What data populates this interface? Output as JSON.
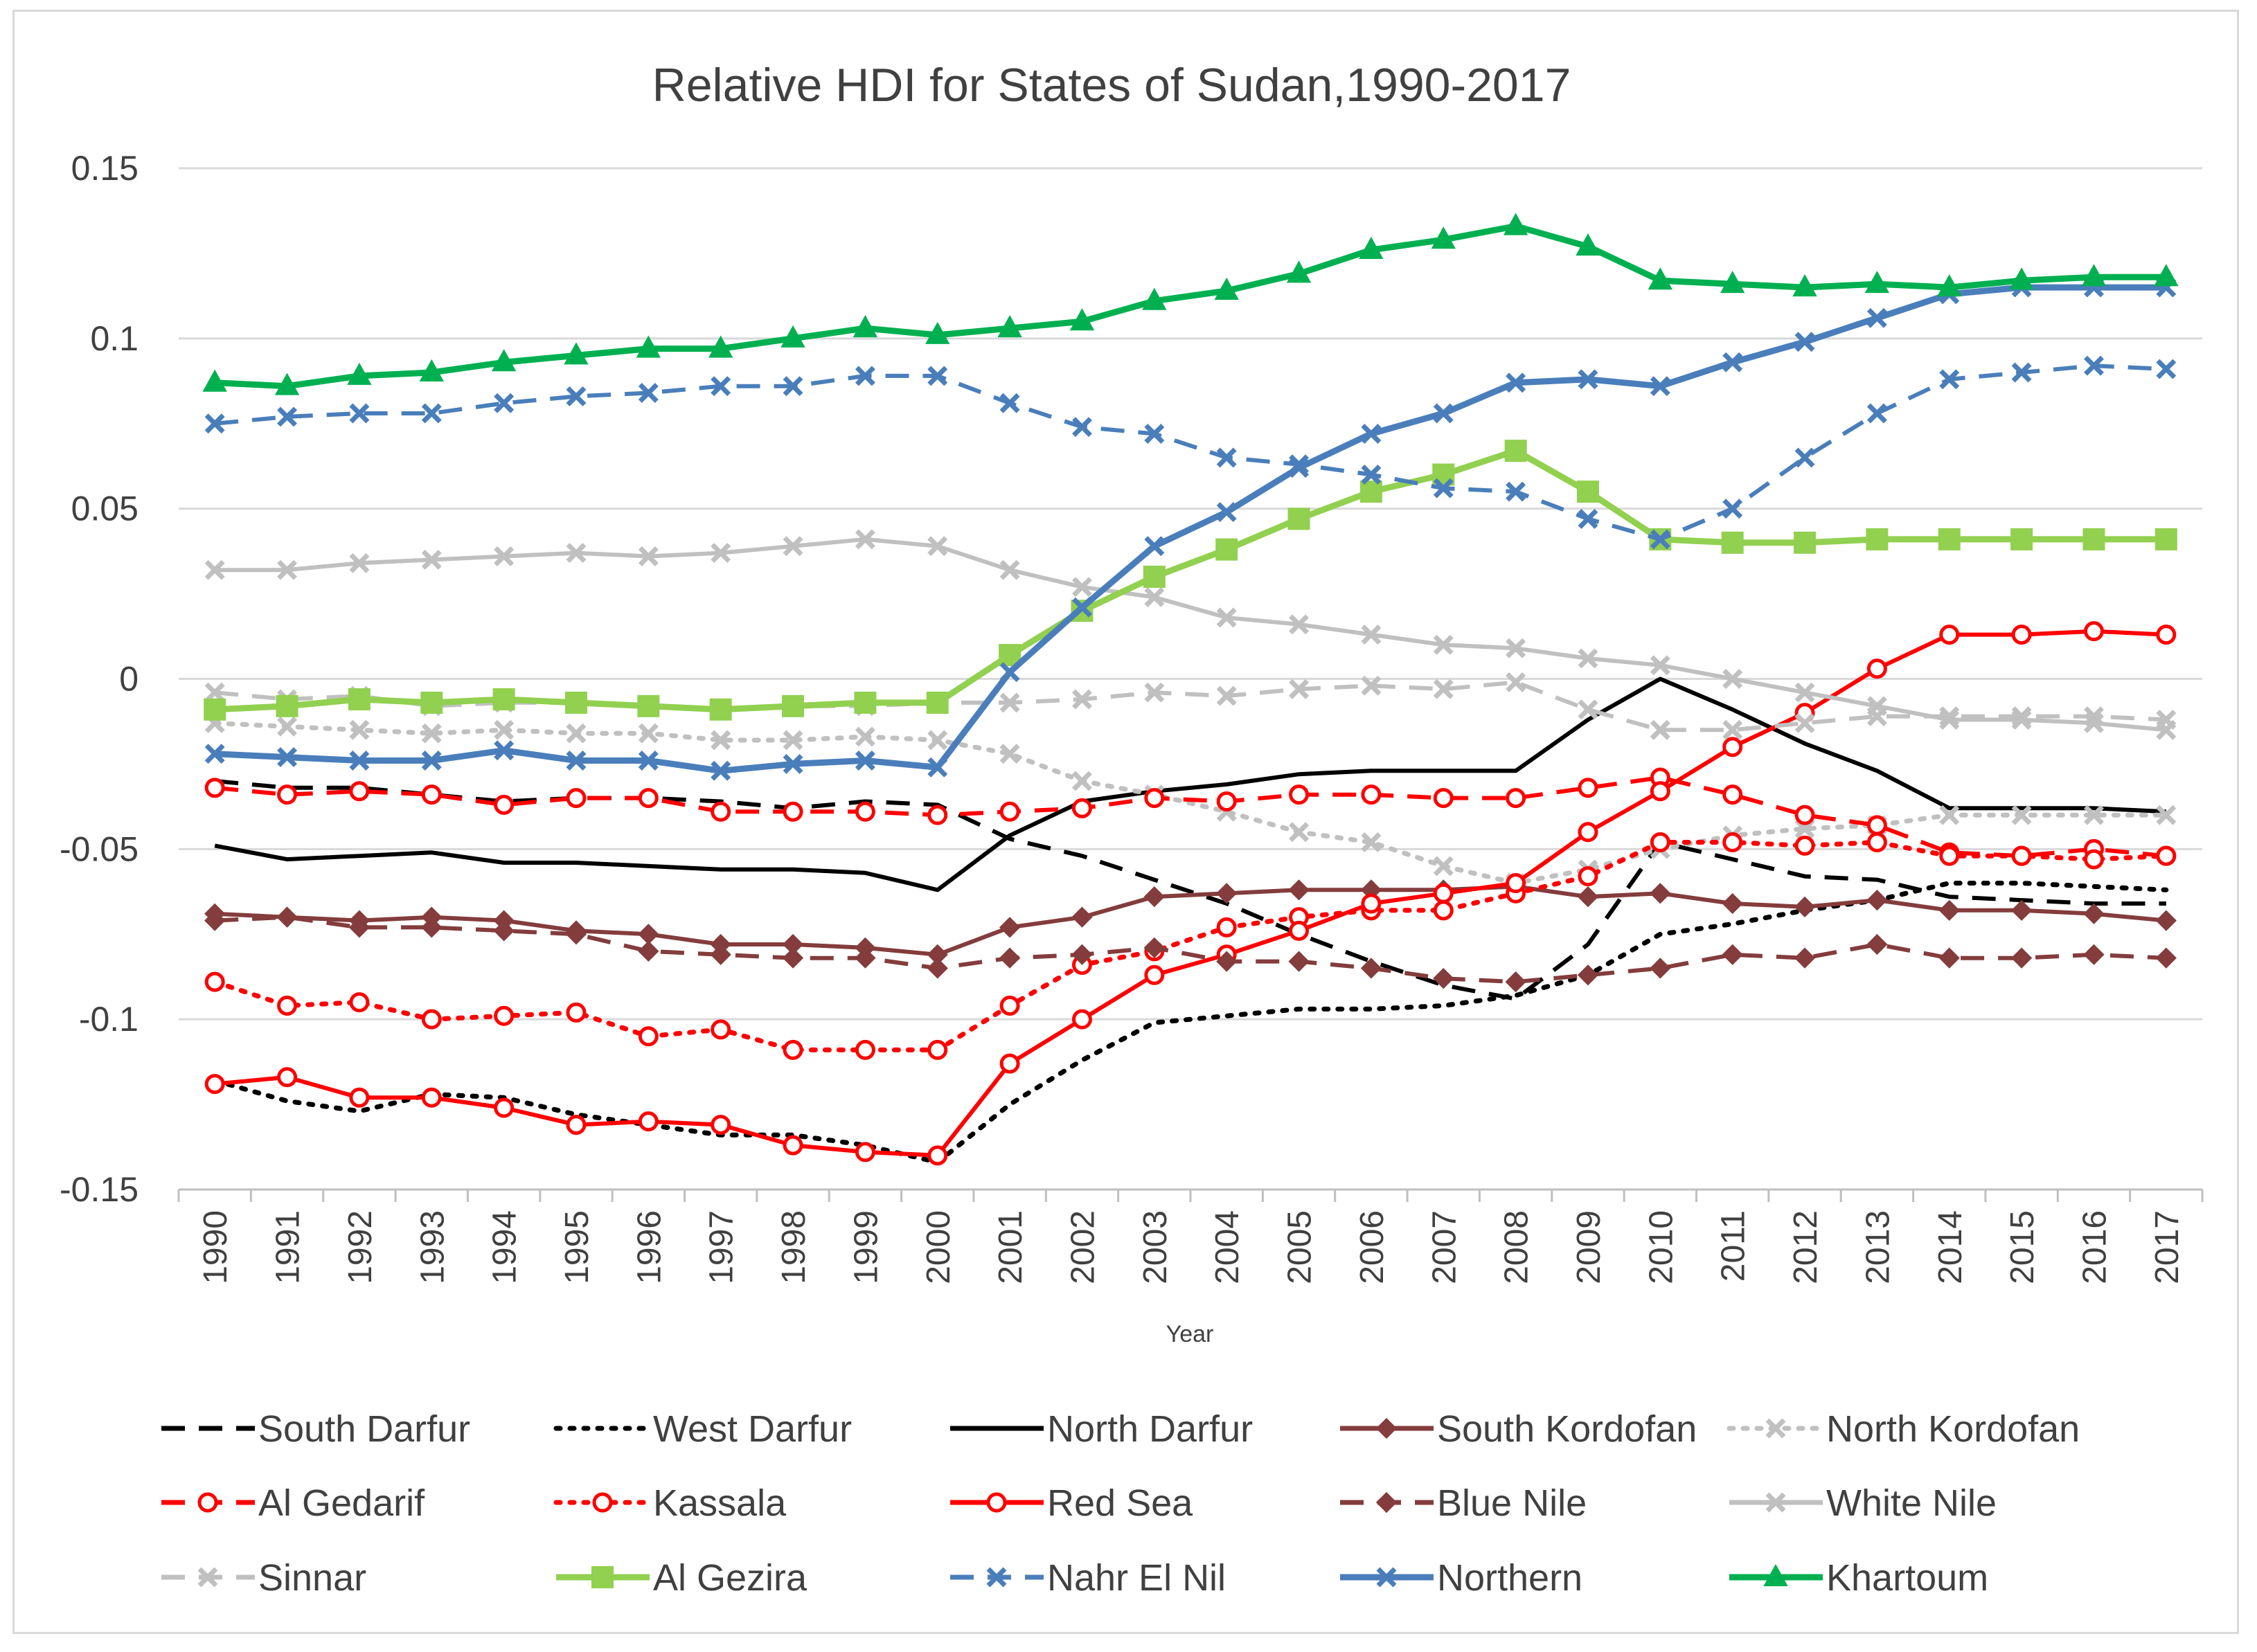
{
  "chart_data": {
    "type": "line",
    "title": "Relative HDI for States of Sudan,1990-2017",
    "xlabel": "Year",
    "ylabel": "",
    "ylim": [
      -0.15,
      0.15
    ],
    "yticks": [
      0.15,
      0.1,
      0.05,
      0,
      -0.05,
      -0.1,
      -0.15
    ],
    "ytick_labels": [
      "0.15",
      "0.1",
      "0.05",
      "0",
      "-0.05",
      "-0.1",
      "-0.15"
    ],
    "grid": true,
    "legend_position": "bottom",
    "categories": [
      "1990",
      "1991",
      "1992",
      "1993",
      "1994",
      "1995",
      "1996",
      "1997",
      "1998",
      "1999",
      "2000",
      "2001",
      "2002",
      "2003",
      "2004",
      "2005",
      "2006",
      "2007",
      "2008",
      "2009",
      "2010",
      "2011",
      "2012",
      "2013",
      "2014",
      "2015",
      "2016",
      "2017"
    ],
    "series": [
      {
        "name": "South Darfur",
        "color": "#000000",
        "dash": "long-dash",
        "marker": "none",
        "values": [
          -0.03,
          -0.032,
          -0.032,
          -0.034,
          -0.036,
          -0.035,
          -0.035,
          -0.036,
          -0.038,
          -0.036,
          -0.037,
          -0.047,
          -0.052,
          -0.059,
          -0.066,
          -0.075,
          -0.083,
          -0.09,
          -0.094,
          -0.078,
          -0.048,
          -0.053,
          -0.058,
          -0.059,
          -0.064,
          -0.065,
          -0.066,
          -0.066
        ]
      },
      {
        "name": "West Darfur",
        "color": "#000000",
        "dash": "dot",
        "marker": "none",
        "values": [
          -0.118,
          -0.124,
          -0.127,
          -0.122,
          -0.123,
          -0.128,
          -0.131,
          -0.134,
          -0.134,
          -0.137,
          -0.142,
          -0.125,
          -0.112,
          -0.101,
          -0.099,
          -0.097,
          -0.097,
          -0.096,
          -0.093,
          -0.087,
          -0.075,
          -0.072,
          -0.068,
          -0.065,
          -0.06,
          -0.06,
          -0.061,
          -0.062
        ]
      },
      {
        "name": "North Darfur",
        "color": "#000000",
        "dash": "solid",
        "marker": "none",
        "values": [
          -0.049,
          -0.053,
          -0.052,
          -0.051,
          -0.054,
          -0.054,
          -0.055,
          -0.056,
          -0.056,
          -0.057,
          -0.062,
          -0.046,
          -0.036,
          -0.033,
          -0.031,
          -0.028,
          -0.027,
          -0.027,
          -0.027,
          -0.012,
          0.0,
          -0.009,
          -0.019,
          -0.027,
          -0.038,
          -0.038,
          -0.038,
          -0.039
        ]
      },
      {
        "name": "South Kordofan",
        "color": "#843c3c",
        "dash": "solid",
        "marker": "diamond",
        "values": [
          -0.069,
          -0.07,
          -0.071,
          -0.07,
          -0.071,
          -0.074,
          -0.075,
          -0.078,
          -0.078,
          -0.079,
          -0.081,
          -0.073,
          -0.07,
          -0.064,
          -0.063,
          -0.062,
          -0.062,
          -0.062,
          -0.061,
          -0.064,
          -0.063,
          -0.066,
          -0.067,
          -0.065,
          -0.068,
          -0.068,
          -0.069,
          -0.071
        ]
      },
      {
        "name": "North Kordofan",
        "color": "#c0c0c0",
        "dash": "dot",
        "marker": "x",
        "values": [
          -0.013,
          -0.014,
          -0.015,
          -0.016,
          -0.015,
          -0.016,
          -0.016,
          -0.018,
          -0.018,
          -0.017,
          -0.018,
          -0.022,
          -0.03,
          -0.034,
          -0.039,
          -0.045,
          -0.048,
          -0.055,
          -0.06,
          -0.056,
          -0.05,
          -0.046,
          -0.044,
          -0.043,
          -0.04,
          -0.04,
          -0.04,
          -0.04
        ]
      },
      {
        "name": "Al Gedarif",
        "color": "#ff0000",
        "dash": "long-dash",
        "marker": "open-circle",
        "values": [
          -0.032,
          -0.034,
          -0.033,
          -0.034,
          -0.037,
          -0.035,
          -0.035,
          -0.039,
          -0.039,
          -0.039,
          -0.04,
          -0.039,
          -0.038,
          -0.035,
          -0.036,
          -0.034,
          -0.034,
          -0.035,
          -0.035,
          -0.032,
          -0.029,
          -0.034,
          -0.04,
          -0.043,
          -0.051,
          -0.052,
          -0.05,
          -0.052
        ]
      },
      {
        "name": "Kassala",
        "color": "#ff0000",
        "dash": "dot",
        "marker": "open-circle",
        "values": [
          -0.089,
          -0.096,
          -0.095,
          -0.1,
          -0.099,
          -0.098,
          -0.105,
          -0.103,
          -0.109,
          -0.109,
          -0.109,
          -0.096,
          -0.084,
          -0.08,
          -0.073,
          -0.07,
          -0.068,
          -0.068,
          -0.063,
          -0.058,
          -0.048,
          -0.048,
          -0.049,
          -0.048,
          -0.052,
          -0.052,
          -0.053,
          -0.052
        ]
      },
      {
        "name": "Red Sea",
        "color": "#ff0000",
        "dash": "solid",
        "marker": "open-circle",
        "values": [
          -0.119,
          -0.117,
          -0.123,
          -0.123,
          -0.126,
          -0.131,
          -0.13,
          -0.131,
          -0.137,
          -0.139,
          -0.14,
          -0.113,
          -0.1,
          -0.087,
          -0.081,
          -0.074,
          -0.066,
          -0.063,
          -0.06,
          -0.045,
          -0.033,
          -0.02,
          -0.01,
          0.003,
          0.013,
          0.013,
          0.014,
          0.013
        ]
      },
      {
        "name": "Blue Nile",
        "color": "#843c3c",
        "dash": "long-dash",
        "marker": "diamond",
        "values": [
          -0.071,
          -0.07,
          -0.073,
          -0.073,
          -0.074,
          -0.075,
          -0.08,
          -0.081,
          -0.082,
          -0.082,
          -0.085,
          -0.082,
          -0.081,
          -0.079,
          -0.083,
          -0.083,
          -0.085,
          -0.088,
          -0.089,
          -0.087,
          -0.085,
          -0.081,
          -0.082,
          -0.078,
          -0.082,
          -0.082,
          -0.081,
          -0.082
        ]
      },
      {
        "name": "White Nile",
        "color": "#c0c0c0",
        "dash": "solid",
        "marker": "x",
        "values": [
          0.032,
          0.032,
          0.034,
          0.035,
          0.036,
          0.037,
          0.036,
          0.037,
          0.039,
          0.041,
          0.039,
          0.032,
          0.027,
          0.024,
          0.018,
          0.016,
          0.013,
          0.01,
          0.009,
          0.006,
          0.004,
          0.0,
          -0.004,
          -0.008,
          -0.012,
          -0.012,
          -0.013,
          -0.015
        ]
      },
      {
        "name": "Sinnar",
        "color": "#c0c0c0",
        "dash": "long-dash",
        "marker": "x",
        "values": [
          -0.004,
          -0.006,
          -0.005,
          -0.008,
          -0.007,
          -0.007,
          -0.008,
          -0.009,
          -0.008,
          -0.008,
          -0.007,
          -0.007,
          -0.006,
          -0.004,
          -0.005,
          -0.003,
          -0.002,
          -0.003,
          -0.001,
          -0.009,
          -0.015,
          -0.015,
          -0.013,
          -0.011,
          -0.011,
          -0.011,
          -0.011,
          -0.012
        ]
      },
      {
        "name": "Al Gezira",
        "color": "#92d050",
        "dash": "solid",
        "marker": "square",
        "values": [
          -0.009,
          -0.008,
          -0.006,
          -0.007,
          -0.006,
          -0.007,
          -0.008,
          -0.009,
          -0.008,
          -0.007,
          -0.007,
          0.007,
          0.02,
          0.03,
          0.038,
          0.047,
          0.055,
          0.06,
          0.067,
          0.055,
          0.041,
          0.04,
          0.04,
          0.041,
          0.041,
          0.041,
          0.041,
          0.041
        ]
      },
      {
        "name": "Nahr El Nil",
        "color": "#4a7ebb",
        "dash": "long-dash",
        "marker": "x",
        "values": [
          0.075,
          0.077,
          0.078,
          0.078,
          0.081,
          0.083,
          0.084,
          0.086,
          0.086,
          0.089,
          0.089,
          0.081,
          0.074,
          0.072,
          0.065,
          0.063,
          0.06,
          0.056,
          0.055,
          0.047,
          0.041,
          0.05,
          0.065,
          0.078,
          0.088,
          0.09,
          0.092,
          0.091
        ]
      },
      {
        "name": "Northern",
        "color": "#4a7ebb",
        "dash": "solid",
        "marker": "x",
        "values": [
          -0.022,
          -0.023,
          -0.024,
          -0.024,
          -0.021,
          -0.024,
          -0.024,
          -0.027,
          -0.025,
          -0.024,
          -0.026,
          0.002,
          0.021,
          0.039,
          0.049,
          0.062,
          0.072,
          0.078,
          0.087,
          0.088,
          0.086,
          0.093,
          0.099,
          0.106,
          0.113,
          0.115,
          0.115,
          0.115
        ]
      },
      {
        "name": "Khartoum",
        "color": "#00b050",
        "dash": "solid",
        "marker": "triangle",
        "values": [
          0.087,
          0.086,
          0.089,
          0.09,
          0.093,
          0.095,
          0.097,
          0.097,
          0.1,
          0.103,
          0.101,
          0.103,
          0.105,
          0.111,
          0.114,
          0.119,
          0.126,
          0.129,
          0.133,
          0.127,
          0.117,
          0.116,
          0.115,
          0.116,
          0.115,
          0.117,
          0.118,
          0.118
        ]
      }
    ]
  }
}
